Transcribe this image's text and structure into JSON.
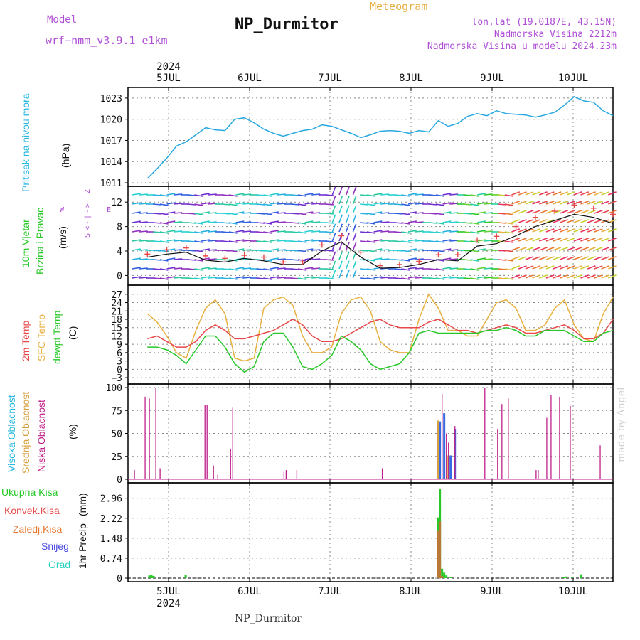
{
  "header": {
    "title": "NP_Durmitor",
    "model_label": "Model",
    "model_name": "wrf−nmm_v3.9.1  e1km",
    "meteogram_label": "Meteogram",
    "info_lines": [
      "lon,lat (19.0187E, 43.15N)",
      "Nadmorska Visina 2212m",
      "Nadmorska Visina u modelu 2024.23m"
    ]
  },
  "footer": {
    "name": "NP_Durmitor",
    "credit": "made by Angel"
  },
  "colors": {
    "pressure": "#28a8e0",
    "temp2m": "#e84848",
    "sfc": "#e8b040",
    "dewpt": "#28c828",
    "high": "#28b8e0",
    "mid": "#d8a040",
    "low": "#c0208a",
    "total": "#28c828",
    "conv": "#e84848",
    "grid": "#28d0c0",
    "snow": "#4848e0",
    "zaledj": "#e87830"
  },
  "time_axis": {
    "year": "2024",
    "day_labels": [
      "5JUL",
      "6JUL",
      "7JUL",
      "8JUL",
      "9JUL",
      "10JUL"
    ]
  },
  "chart_data": [
    {
      "type": "line",
      "panel": "pressure",
      "ylabel_title": "Pritisak na nivou mora",
      "ylabel_unit": "(hPa)",
      "yticks": [
        "1011",
        "1014",
        "1017",
        "1020",
        "1023"
      ],
      "ylim": [
        1011,
        1024
      ],
      "x_hours": [
        0,
        3,
        6,
        9,
        12,
        15,
        18,
        21,
        24,
        27,
        30,
        33,
        36,
        39,
        42,
        45,
        48,
        51,
        54,
        57,
        60,
        63,
        66,
        69,
        72,
        75,
        78,
        81,
        84,
        87,
        90,
        93,
        96,
        99,
        102,
        105,
        108,
        111,
        114,
        117,
        120,
        123,
        126,
        129,
        132,
        135,
        138,
        141,
        144
      ],
      "series": [
        {
          "values": [
            1011.6,
            1013.0,
            1014.5,
            1016.2,
            1016.8,
            1017.8,
            1018.8,
            1018.5,
            1018.4,
            1020.0,
            1020.2,
            1019.5,
            1018.6,
            1018.0,
            1017.6,
            1018.0,
            1018.4,
            1018.6,
            1019.2,
            1019.0,
            1018.5,
            1018.0,
            1017.4,
            1017.8,
            1018.3,
            1018.4,
            1018.3,
            1018.0,
            1018.4,
            1018.2,
            1019.8,
            1019.0,
            1019.4,
            1020.4,
            1020.8,
            1020.5,
            1021.2,
            1020.8,
            1020.7,
            1020.6,
            1020.3,
            1020.6,
            1021.0,
            1022.0,
            1023.2,
            1022.6,
            1022.4,
            1021.2,
            1020.5
          ]
        }
      ]
    },
    {
      "type": "line",
      "panel": "wind",
      "ylabel_title": "10m Vjetar",
      "ylabel_title2": "Brzina i Pravac",
      "ylabel_unit": "(m/s)",
      "compass": [
        "S",
        "<",
        "-",
        "|",
        "-",
        ">",
        "Z",
        "W",
        "E"
      ],
      "yticks": [
        "0",
        "4",
        "8",
        "12"
      ],
      "ylim": [
        -1,
        14
      ],
      "x_hours": [
        0,
        6,
        12,
        18,
        24,
        30,
        36,
        42,
        48,
        54,
        60,
        66,
        72,
        78,
        84,
        90,
        96,
        102,
        108,
        114,
        120,
        126,
        132,
        138,
        144
      ],
      "series": [
        {
          "values": [
            3,
            3.5,
            3.8,
            2.5,
            2.2,
            2.8,
            2.4,
            1.8,
            1.8,
            4,
            5.5,
            3,
            1.2,
            1.3,
            1.8,
            2.6,
            2.4,
            4.8,
            5.2,
            6.5,
            8,
            9,
            10,
            9.5,
            8.5
          ]
        },
        {
          "values": [
            3.5,
            4.2,
            4.5,
            3.2,
            2.8,
            3.3,
            3,
            2.2,
            2.2,
            5,
            6.5,
            3.8,
            1.6,
            1.8,
            2.3,
            3.4,
            3.4,
            5.8,
            6.4,
            8,
            9.5,
            10.5,
            11.5,
            11,
            10
          ]
        }
      ]
    },
    {
      "type": "line",
      "panel": "temperature",
      "ylabel_title": "2m Temp",
      "ylabel_title2": "SFC Temp",
      "ylabel_title3": "dewpt Temp",
      "ylabel_unit": "(C)",
      "yticks": [
        "−3",
        "0",
        "3",
        "6",
        "9",
        "12",
        "15",
        "18",
        "21",
        "24",
        "27"
      ],
      "ylim": [
        -4,
        29
      ],
      "x_hours": [
        0,
        3,
        6,
        9,
        12,
        15,
        18,
        21,
        24,
        27,
        30,
        33,
        36,
        39,
        42,
        45,
        48,
        51,
        54,
        57,
        60,
        63,
        66,
        69,
        72,
        75,
        78,
        81,
        84,
        87,
        90,
        93,
        96,
        99,
        102,
        105,
        108,
        111,
        114,
        117,
        120,
        123,
        126,
        129,
        132,
        135,
        138,
        141,
        144
      ],
      "series": [
        {
          "values": [
            11,
            12,
            10,
            8,
            8,
            10,
            14,
            16,
            14,
            11,
            11,
            12,
            13,
            14,
            16,
            18,
            16,
            12,
            10,
            10,
            11,
            13,
            15,
            17,
            18,
            16,
            15,
            15,
            15,
            17,
            18,
            16,
            14,
            14,
            13,
            14,
            15,
            16,
            15,
            13,
            13,
            14,
            15,
            16,
            14,
            11,
            11,
            13,
            18
          ]
        },
        {
          "values": [
            20,
            17,
            12,
            6,
            4,
            14,
            22,
            25,
            20,
            4,
            3,
            4,
            22,
            25,
            26,
            23,
            12,
            6,
            6,
            8,
            20,
            25,
            26,
            21,
            10,
            7,
            6,
            6,
            18,
            27,
            22,
            14,
            14,
            12,
            12,
            18,
            24,
            25,
            22,
            14,
            14,
            16,
            22,
            25,
            16,
            11,
            10,
            20,
            26
          ]
        },
        {
          "values": [
            8,
            8,
            7,
            5,
            2,
            7,
            12,
            12,
            8,
            2,
            -1,
            1,
            10,
            13,
            13,
            8,
            1,
            0,
            2,
            5,
            12,
            10,
            7,
            2,
            0,
            1,
            2,
            6,
            13,
            14,
            13,
            13,
            13,
            13,
            13,
            14,
            14,
            15,
            14,
            12,
            12,
            14,
            14,
            14,
            12,
            10,
            10,
            13,
            14
          ]
        }
      ]
    },
    {
      "type": "bar",
      "panel": "clouds",
      "ylabel_title": "Visoka Oblacnost",
      "ylabel_title2": "Srednja Oblacnost",
      "ylabel_title3": "Niska Oblacnost",
      "ylabel_unit": "(%)",
      "yticks": [
        "0",
        "25",
        "50",
        "75",
        "100"
      ],
      "ylim": [
        0,
        100
      ],
      "low_bars": [
        [
          2,
          10
        ],
        [
          7,
          90
        ],
        [
          9,
          88
        ],
        [
          12,
          100
        ],
        [
          14,
          12
        ],
        [
          35,
          81
        ],
        [
          36,
          81
        ],
        [
          39,
          15
        ],
        [
          41,
          5
        ],
        [
          47,
          33
        ],
        [
          48,
          78
        ],
        [
          72,
          8
        ],
        [
          73,
          10
        ],
        [
          78,
          10
        ],
        [
          118,
          12
        ],
        [
          146,
          93
        ],
        [
          148,
          50
        ],
        [
          149,
          40
        ],
        [
          152,
          58
        ],
        [
          166,
          100
        ],
        [
          172,
          55
        ],
        [
          174,
          82
        ],
        [
          177,
          88
        ],
        [
          190,
          10
        ],
        [
          191,
          10
        ],
        [
          195,
          67
        ],
        [
          197,
          92
        ],
        [
          201,
          90
        ],
        [
          206,
          80
        ],
        [
          220,
          37
        ]
      ],
      "high_bars": [
        [
          145,
          63
        ],
        [
          147,
          72
        ],
        [
          150,
          26
        ],
        [
          152,
          55
        ]
      ],
      "mid_bars": [
        [
          144,
          64
        ],
        [
          149,
          26
        ]
      ]
    },
    {
      "type": "bar",
      "panel": "precip",
      "ylabel_title": "1hr Precip",
      "ylabel_unit": "(mm)",
      "legend": [
        "Ukupna  Kisa",
        "Konvek.Kisa",
        "Zaledj.Kisa",
        "Snijeg",
        "Grad"
      ],
      "yticks": [
        "0",
        "0.74",
        "1.48",
        "2.22",
        "2.96"
      ],
      "ylim": [
        0,
        3.4
      ],
      "total_bars": [
        [
          9,
          0.1
        ],
        [
          10,
          0.12
        ],
        [
          11,
          0.08
        ],
        [
          26,
          0.12
        ],
        [
          144,
          2.25
        ],
        [
          145,
          3.3
        ],
        [
          146,
          0.35
        ],
        [
          147,
          0.2
        ],
        [
          148,
          0.1
        ],
        [
          150,
          0.04
        ],
        [
          203,
          0.05
        ],
        [
          204,
          0.06
        ],
        [
          207,
          0.05
        ],
        [
          211,
          0.14
        ]
      ],
      "conv_bars": [
        [
          144,
          1.75
        ],
        [
          145,
          2.1
        ],
        [
          146,
          0.08
        ]
      ]
    }
  ]
}
